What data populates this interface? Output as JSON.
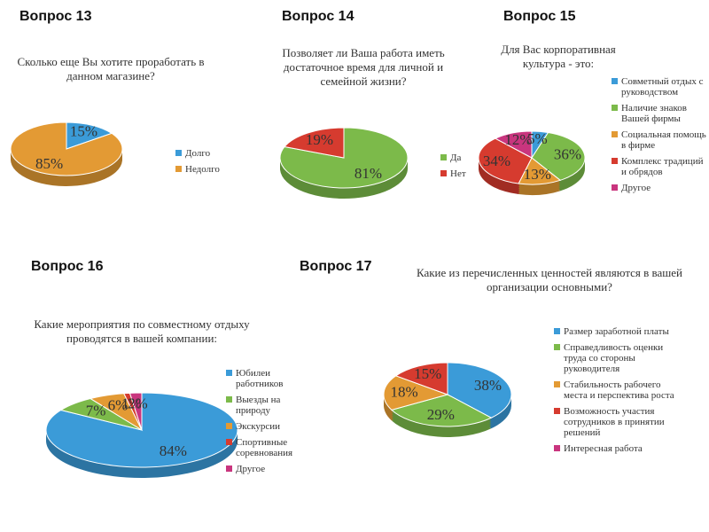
{
  "chart_data": [
    {
      "type": "pie",
      "heading": "Вопрос 13",
      "title": "Сколько еще Вы хотите проработать в данном магазине?",
      "categories": [
        "Долго",
        "Недолго"
      ],
      "values": [
        15,
        85
      ],
      "value_labels": [
        "15%",
        "85%"
      ],
      "colors": [
        "#3b9bd8",
        "#e39a34"
      ]
    },
    {
      "type": "pie",
      "heading": "Вопрос 14",
      "title": "Позволяет ли Ваша работа иметь достаточное время для личной и семейной жизни?",
      "categories": [
        "Да",
        "Нет"
      ],
      "values": [
        81,
        19
      ],
      "value_labels": [
        "81%",
        "19%"
      ],
      "colors": [
        "#7cba4a",
        "#d63b2f"
      ]
    },
    {
      "type": "pie",
      "heading": "Вопрос 15",
      "title": "Для Вас корпоративная культура - это:",
      "categories": [
        "Совметный отдых с руководством",
        "Наличие знаков Вашей фирмы",
        "Социальная помощь в фирме",
        "Комплекс традиций и обрядов",
        "Другое"
      ],
      "values": [
        5,
        36,
        13,
        34,
        12
      ],
      "value_labels": [
        "5%",
        "36%",
        "13%",
        "34%",
        "12%"
      ],
      "colors": [
        "#3b9bd8",
        "#7cba4a",
        "#e39a34",
        "#d63b2f",
        "#c9357e"
      ]
    },
    {
      "type": "pie",
      "heading": "Вопрос 16",
      "title": "Какие мероприятия по совместному отдыху проводятся в вашей компании:",
      "categories": [
        "Юбилеи работников",
        "Выезды на природу",
        "Экскурсии",
        "Спортивные соревнования",
        "Другое"
      ],
      "values": [
        84,
        7,
        6,
        1,
        2
      ],
      "value_labels": [
        "84%",
        "7%",
        "6%",
        "1%",
        "2%"
      ],
      "colors": [
        "#3b9bd8",
        "#7cba4a",
        "#e39a34",
        "#d63b2f",
        "#c9357e"
      ]
    },
    {
      "type": "pie",
      "heading": "Вопрос 17",
      "title": "Какие из перечисленных ценностей являются в вашей организации основными?",
      "categories": [
        "Размер заработной платы",
        "Справедливость оценки труда со стороны руководителя",
        "Стабильность рабочего места и перспектива роста",
        "Возможность участия сотрудников в принятии решений",
        "Интересная работа"
      ],
      "values": [
        38,
        29,
        18,
        15,
        null
      ],
      "value_labels": [
        "38%",
        "29%",
        "18%",
        "15%",
        null
      ],
      "colors": [
        "#3b9bd8",
        "#7cba4a",
        "#e39a34",
        "#d63b2f",
        "#c9357e"
      ]
    }
  ]
}
